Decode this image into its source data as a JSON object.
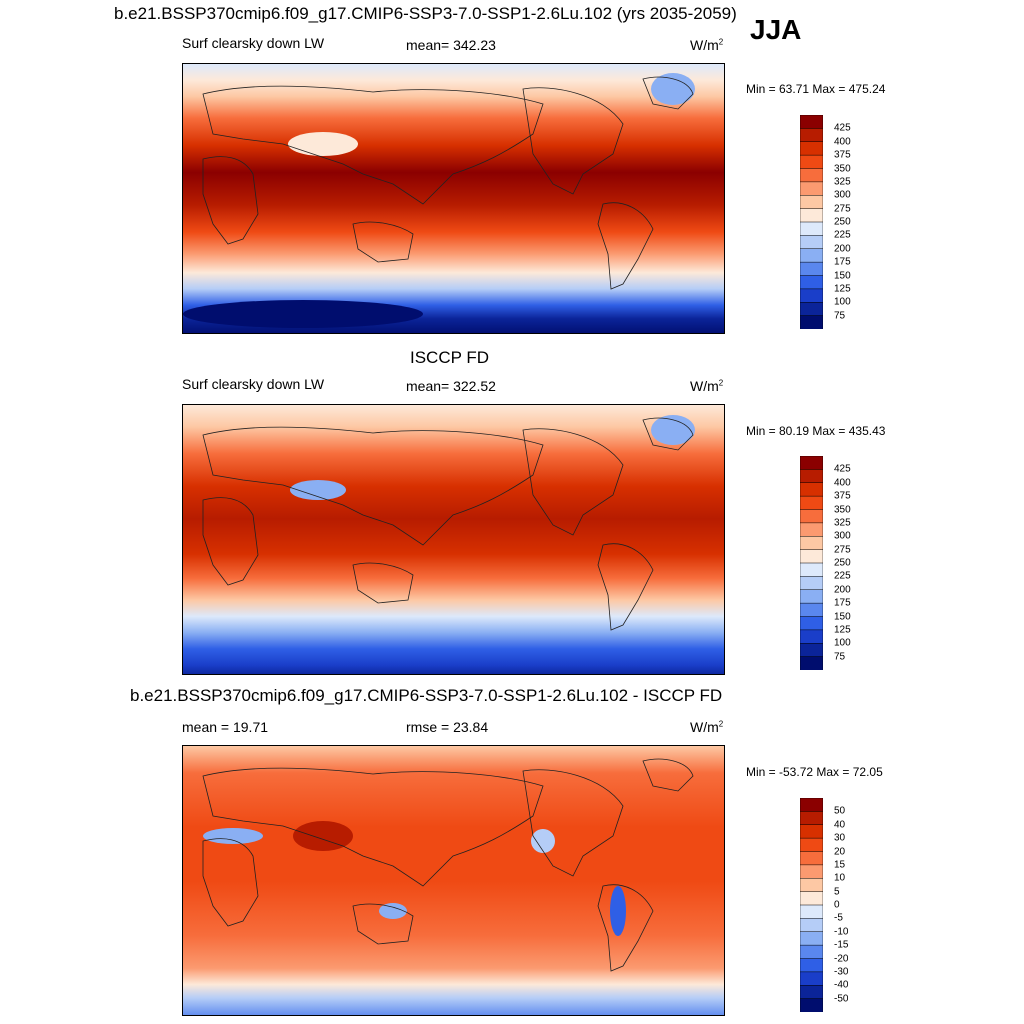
{
  "season": "JJA",
  "panels": [
    {
      "title": "b.e21.BSSP370cmip6.f09_g17.CMIP6-SSP3-7.0-SSP1-2.6Lu.102 (yrs 2035-2059)",
      "left_label": "Surf clearsky down LW",
      "center_label": "mean= 342.23",
      "units": "W/m",
      "units_exp": "2",
      "minmax": "Min =  63.71 Max = 475.24",
      "levels": [
        "425",
        "400",
        "375",
        "350",
        "325",
        "300",
        "275",
        "250",
        "225",
        "200",
        "175",
        "150",
        "125",
        "100",
        "75"
      ]
    },
    {
      "title": "ISCCP FD",
      "left_label": "Surf clearsky down LW",
      "center_label": "mean= 322.52",
      "units": "W/m",
      "units_exp": "2",
      "minmax": "Min =  80.19 Max = 435.43",
      "levels": [
        "425",
        "400",
        "375",
        "350",
        "325",
        "300",
        "275",
        "250",
        "225",
        "200",
        "175",
        "150",
        "125",
        "100",
        "75"
      ]
    },
    {
      "title": "b.e21.BSSP370cmip6.f09_g17.CMIP6-SSP3-7.0-SSP1-2.6Lu.102 - ISCCP FD",
      "left_label": "mean =  19.71",
      "center_label": "rmse =  23.84",
      "units": "W/m",
      "units_exp": "2",
      "minmax": "Min = -53.72 Max =  72.05",
      "levels": [
        "50",
        "40",
        "30",
        "20",
        "15",
        "10",
        "5",
        "0",
        "-5",
        "-10",
        "-15",
        "-20",
        "-30",
        "-40",
        "-50"
      ]
    }
  ],
  "colors": {
    "scale": [
      "#8b0000",
      "#b71c00",
      "#d73000",
      "#ef4a14",
      "#f76d3c",
      "#fb9a70",
      "#fdc8a4",
      "#fde9d9",
      "#dde9fb",
      "#b5cdf7",
      "#8aaff3",
      "#5a87ee",
      "#2f5fe6",
      "#1a3ec9",
      "#0b2499",
      "#000d6e"
    ]
  }
}
